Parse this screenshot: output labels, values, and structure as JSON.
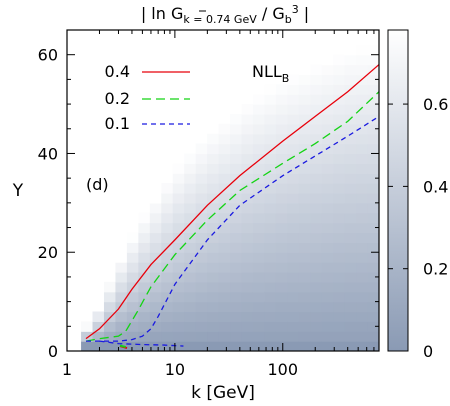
{
  "chart_data": {
    "type": "heatmap",
    "title_parts": {
      "a": "| ln G",
      "b": "k = 0.74 GeV",
      "c": " / G",
      "d": "b",
      "e": "3",
      "f": " |"
    },
    "panel_label": "(d)",
    "xlabel": "k [GeV]",
    "ylabel": "Y",
    "x_scale": "log",
    "xlim": [
      1,
      780
    ],
    "ylim": [
      0,
      65
    ],
    "x_ticks": [
      1,
      10,
      100
    ],
    "x_tick_labels": [
      "1",
      "10",
      "100"
    ],
    "y_ticks": [
      0,
      20,
      40,
      60
    ],
    "y_tick_labels": [
      "0",
      "20",
      "40",
      "60"
    ],
    "colorbar": {
      "range": [
        0,
        0.78
      ],
      "ticks": [
        0,
        0.2,
        0.4,
        0.6
      ],
      "tick_labels": [
        "0",
        "0.2",
        "0.4",
        "0.6"
      ],
      "color_low": "#8a9ab4",
      "color_high": "#ffffff"
    },
    "legend": {
      "title_main": "NLL",
      "title_sub": "B",
      "placement": "top-left"
    },
    "series": [
      {
        "name": "0.4",
        "color": "#e8000b",
        "dash": "solid",
        "x": [
          1.5,
          2.0,
          3.0,
          4.0,
          6.0,
          10,
          20,
          40,
          100,
          200,
          400,
          780
        ],
        "y": [
          2.5,
          4.5,
          8.5,
          12.5,
          17.5,
          22.5,
          29.5,
          35.5,
          42.5,
          47.5,
          52.5,
          58
        ]
      },
      {
        "name": "0.2",
        "color": "#14d414",
        "dash": "dash",
        "x": [
          1.5,
          2.0,
          3.0,
          3.5,
          4.5,
          6.0,
          10,
          20,
          40,
          100,
          200,
          400,
          780
        ],
        "y": [
          2.0,
          2.5,
          3.0,
          4.0,
          8.0,
          13.0,
          19.5,
          26.5,
          32.5,
          38.0,
          42.0,
          46.5,
          52.5
        ]
      },
      {
        "name": "0.1",
        "color": "#1a1ae0",
        "dash": "dot",
        "x": [
          1.5,
          2.0,
          3.0,
          4.0,
          5.0,
          6.0,
          7.0,
          10,
          20,
          40,
          100,
          200,
          400,
          780
        ],
        "y": [
          2.0,
          2.0,
          2.0,
          2.3,
          3.0,
          4.5,
          7.0,
          13.5,
          22.5,
          29.5,
          35.5,
          39.5,
          43.5,
          47.5
        ]
      },
      {
        "name": "",
        "color": "#1a1ae0",
        "dash": "dot",
        "x": [
          2.0,
          3.0,
          5.0,
          8.0,
          12.0
        ],
        "y": [
          2.0,
          1.5,
          1.3,
          1.2,
          1.0
        ]
      }
    ],
    "markers": [
      {
        "color": "#e8000b",
        "x": [
          3.1,
          3.6
        ],
        "y": [
          1.0,
          0.6
        ]
      },
      {
        "color": "#14d414",
        "x": [
          3.1,
          3.5
        ],
        "y": [
          1.1,
          0.8
        ]
      }
    ],
    "grid": false
  }
}
